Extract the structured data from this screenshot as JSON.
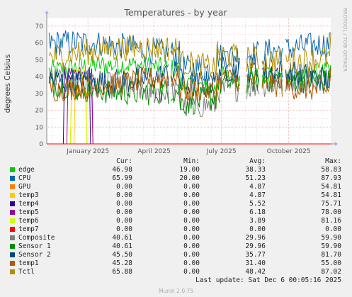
{
  "chart_data": {
    "type": "line",
    "title": "Temperatures - by year",
    "ylabel": "degrees Celsius",
    "side_label": "RRDTOOL / TOBI OETIKER",
    "ylim": [
      0,
      75
    ],
    "yticks": [
      0,
      10,
      20,
      30,
      40,
      50,
      60,
      70
    ],
    "xticks": [
      {
        "label": "January 2025",
        "t": 0.145
      },
      {
        "label": "April 2025",
        "t": 0.378
      },
      {
        "label": "July 2025",
        "t": 0.615
      },
      {
        "label": "October 2025",
        "t": 0.852
      }
    ],
    "series": [
      {
        "name": "edge",
        "color": "#00cc00",
        "cur": "46.98",
        "min": "19.00",
        "avg": "38.33",
        "max": "58.83"
      },
      {
        "name": "CPU",
        "color": "#0066b3",
        "cur": "65.99",
        "min": "20.00",
        "avg": "51.23",
        "max": "87.93"
      },
      {
        "name": "GPU",
        "color": "#ff8000",
        "cur": "0.00",
        "min": "0.00",
        "avg": "4.87",
        "max": "54.81"
      },
      {
        "name": "temp3",
        "color": "#ffcc00",
        "cur": "0.00",
        "min": "0.00",
        "avg": "4.87",
        "max": "54.81"
      },
      {
        "name": "temp4",
        "color": "#330099",
        "cur": "0.00",
        "min": "0.00",
        "avg": "5.52",
        "max": "75.71"
      },
      {
        "name": "temp5",
        "color": "#990099",
        "cur": "0.00",
        "min": "0.00",
        "avg": "6.18",
        "max": "78.00"
      },
      {
        "name": "temp6",
        "color": "#ccff00",
        "cur": "0.00",
        "min": "0.00",
        "avg": "3.89",
        "max": "81.16"
      },
      {
        "name": "temp7",
        "color": "#ff0000",
        "cur": "0.00",
        "min": "0.00",
        "avg": "0.00",
        "max": "0.00"
      },
      {
        "name": "Composite",
        "color": "#808080",
        "cur": "40.61",
        "min": "0.00",
        "avg": "29.96",
        "max": "59.90"
      },
      {
        "name": "Sensor 1",
        "color": "#008f00",
        "cur": "40.61",
        "min": "0.00",
        "avg": "29.96",
        "max": "59.90"
      },
      {
        "name": "Sensor 2",
        "color": "#00487d",
        "cur": "45.50",
        "min": "0.00",
        "avg": "35.77",
        "max": "81.70"
      },
      {
        "name": "temp1",
        "color": "#b35a00",
        "cur": "45.28",
        "min": "0.00",
        "avg": "31.40",
        "max": "55.00"
      },
      {
        "name": "Tctl",
        "color": "#b38f00",
        "cur": "65.88",
        "min": "0.00",
        "avg": "48.42",
        "max": "87.02"
      }
    ]
  },
  "legend_headers": {
    "cur": "Cur:",
    "min": "Min:",
    "avg": "Avg:",
    "max": "Max:"
  },
  "last_update": "Last update: Sat Dec  6 00:05:16 2025",
  "version": "Munin 2.0.75"
}
